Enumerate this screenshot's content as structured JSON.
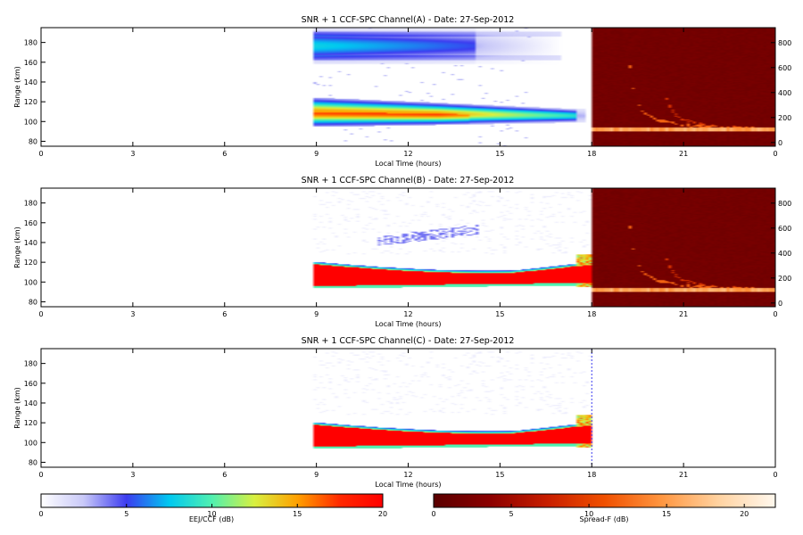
{
  "panels": [
    {
      "title": "SNR + 1 CCF-SPC Channel(A) - Date: 27-Sep-2012",
      "has_spread_f": true,
      "mode": "A"
    },
    {
      "title": "SNR + 1 CCF-SPC Channel(B) - Date: 27-Sep-2012",
      "has_spread_f": true,
      "mode": "B"
    },
    {
      "title": "SNR + 1 CCF-SPC Channel(C) - Date: 27-Sep-2012",
      "has_spread_f": false,
      "mode": "C"
    }
  ],
  "axes": {
    "x_label": "Local Time (hours)",
    "x_range": [
      0,
      24
    ],
    "x_ticks": [
      "0",
      "3",
      "6",
      "9",
      "12",
      "15",
      "18",
      "21",
      "0"
    ],
    "x_tick_values": [
      0,
      3,
      6,
      9,
      12,
      15,
      18,
      21,
      24
    ],
    "y_label": "Range (km)",
    "y_range": [
      75,
      195
    ],
    "y_ticks": [
      80,
      100,
      120,
      140,
      160,
      180
    ],
    "y2_range": [
      -30,
      920
    ],
    "y2_ticks": [
      0,
      200,
      400,
      600,
      800
    ],
    "spread_f_start_hour": 18
  },
  "colorbars": [
    {
      "label": "EEJ/CCF (dB)",
      "range": [
        0,
        20
      ],
      "ticks": [
        "0",
        "5",
        "10",
        "15",
        "20"
      ],
      "colors": [
        "#ffffff",
        "#c8c8f8",
        "#3c3cf0",
        "#00c8f0",
        "#50f0b0",
        "#d8f040",
        "#ffa000",
        "#ff2800",
        "#ff0000"
      ]
    },
    {
      "label": "Spread-F (dB)",
      "range": [
        0,
        22
      ],
      "ticks": [
        "0",
        "5",
        "10",
        "15",
        "20"
      ],
      "colors": [
        "#5a0000",
        "#8c0000",
        "#c81e00",
        "#f05000",
        "#ff9640",
        "#ffd2a0",
        "#fff8ee"
      ]
    }
  ],
  "chart_data": {
    "type": "heatmap",
    "x_unit": "local time (hours)",
    "y_unit": "range (km)",
    "day_layers_A": [
      {
        "start": 8.9,
        "end": 14.2,
        "top": 193,
        "bottom": 160,
        "peak_db": 8,
        "fade_end": 17.0
      },
      {
        "start": 8.9,
        "end": 17.5,
        "top": 122,
        "bottom": 97,
        "peak_db": 14,
        "fade_end": 17.8
      }
    ],
    "day_layers_BC": [
      {
        "start": 8.9,
        "end": 17.5,
        "top_start": 118,
        "top_mid": 109,
        "top_end": 118,
        "bottom_start": 96,
        "bottom_end": 99,
        "peak_db": 20
      }
    ]
  }
}
